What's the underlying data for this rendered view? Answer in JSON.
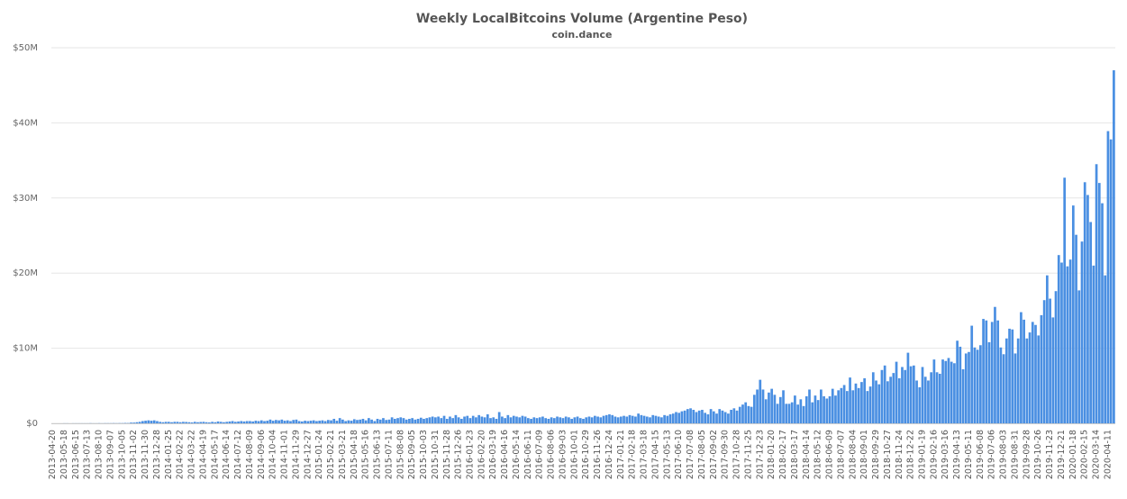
{
  "chart_data": {
    "type": "bar",
    "title": "Weekly LocalBitcoins Volume (Argentine Peso)",
    "subtitle": "coin.dance",
    "color": "#4a8fe2",
    "grid": true,
    "ylim": [
      0,
      50000000
    ],
    "yticks": [
      {
        "value": 0,
        "label": "$0"
      },
      {
        "value": 10000000,
        "label": "$10M"
      },
      {
        "value": 20000000,
        "label": "$20M"
      },
      {
        "value": 30000000,
        "label": "$30M"
      },
      {
        "value": 40000000,
        "label": "$40M"
      },
      {
        "value": 50000000,
        "label": "$50M"
      }
    ],
    "categories": [
      "2013-04-20",
      null,
      null,
      null,
      "2013-05-18",
      null,
      null,
      null,
      "2013-06-15",
      null,
      null,
      null,
      "2013-07-13",
      null,
      null,
      null,
      "2013-08-10",
      null,
      null,
      null,
      "2013-09-07",
      null,
      null,
      null,
      "2013-10-05",
      null,
      null,
      null,
      "2013-11-02",
      null,
      null,
      null,
      "2013-11-30",
      null,
      null,
      null,
      "2013-12-28",
      null,
      null,
      null,
      "2014-01-25",
      null,
      null,
      null,
      "2014-02-22",
      null,
      null,
      null,
      "2014-03-22",
      null,
      null,
      null,
      "2014-04-19",
      null,
      null,
      null,
      "2014-05-17",
      null,
      null,
      null,
      "2014-06-14",
      null,
      null,
      null,
      "2014-07-12",
      null,
      null,
      null,
      "2014-08-09",
      null,
      null,
      null,
      "2014-09-06",
      null,
      null,
      null,
      "2014-10-04",
      null,
      null,
      null,
      "2014-11-01",
      null,
      null,
      null,
      "2014-11-29",
      null,
      null,
      null,
      "2014-12-27",
      null,
      null,
      null,
      "2015-01-24",
      null,
      null,
      null,
      "2015-02-21",
      null,
      null,
      null,
      "2015-03-21",
      null,
      null,
      null,
      "2015-04-18",
      null,
      null,
      null,
      "2015-05-16",
      null,
      null,
      null,
      "2015-06-13",
      null,
      null,
      null,
      "2015-07-11",
      null,
      null,
      null,
      "2015-08-08",
      null,
      null,
      null,
      "2015-09-05",
      null,
      null,
      null,
      "2015-10-03",
      null,
      null,
      null,
      "2015-10-31",
      null,
      null,
      null,
      "2015-11-28",
      null,
      null,
      null,
      "2015-12-26",
      null,
      null,
      null,
      "2016-01-23",
      null,
      null,
      null,
      "2016-02-20",
      null,
      null,
      null,
      "2016-03-19",
      null,
      null,
      null,
      "2016-04-16",
      null,
      null,
      null,
      "2016-05-14",
      null,
      null,
      null,
      "2016-06-11",
      null,
      null,
      null,
      "2016-07-09",
      null,
      null,
      null,
      "2016-08-06",
      null,
      null,
      null,
      "2016-09-03",
      null,
      null,
      null,
      "2016-10-01",
      null,
      null,
      null,
      "2016-10-29",
      null,
      null,
      null,
      "2016-11-26",
      null,
      null,
      null,
      "2016-12-24",
      null,
      null,
      null,
      "2017-01-21",
      null,
      null,
      null,
      "2017-02-18",
      null,
      null,
      null,
      "2017-03-18",
      null,
      null,
      null,
      "2017-04-15",
      null,
      null,
      null,
      "2017-05-13",
      null,
      null,
      null,
      "2017-06-10",
      null,
      null,
      null,
      "2017-07-08",
      null,
      null,
      null,
      "2017-08-05",
      null,
      null,
      null,
      "2017-09-02",
      null,
      null,
      null,
      "2017-09-30",
      null,
      null,
      null,
      "2017-10-28",
      null,
      null,
      null,
      "2017-11-25",
      null,
      null,
      null,
      "2017-12-23",
      null,
      null,
      null,
      "2018-01-20",
      null,
      null,
      null,
      "2018-02-17",
      null,
      null,
      null,
      "2018-03-17",
      null,
      null,
      null,
      "2018-04-14",
      null,
      null,
      null,
      "2018-05-12",
      null,
      null,
      null,
      "2018-06-09",
      null,
      null,
      null,
      "2018-07-07",
      null,
      null,
      null,
      "2018-08-04",
      null,
      null,
      null,
      "2018-09-01",
      null,
      null,
      null,
      "2018-09-29",
      null,
      null,
      null,
      "2018-10-27",
      null,
      null,
      null,
      "2018-11-24",
      null,
      null,
      null,
      "2018-12-22",
      null,
      null,
      null,
      "2019-01-19",
      null,
      null,
      null,
      "2019-02-16",
      null,
      null,
      null,
      "2019-03-16",
      null,
      null,
      null,
      "2019-04-13",
      null,
      null,
      null,
      "2019-05-11",
      null,
      null,
      null,
      "2019-06-08",
      null,
      null,
      null,
      "2019-07-06",
      null,
      null,
      null,
      "2019-08-03",
      null,
      null,
      null,
      "2019-08-31",
      null,
      null,
      null,
      "2019-09-28",
      null,
      null,
      null,
      "2019-10-26",
      null,
      null,
      null,
      "2019-11-23",
      null,
      null,
      null,
      "2019-12-21",
      null,
      null,
      null,
      "2020-01-18",
      null,
      null,
      null,
      "2020-02-15",
      null,
      null,
      null,
      "2020-03-14",
      null,
      null,
      null,
      "2020-04-11",
      null,
      null
    ],
    "values": [
      0,
      0,
      0,
      0,
      10000,
      10000,
      0,
      10000,
      10000,
      10000,
      10000,
      10000,
      10000,
      20000,
      10000,
      10000,
      20000,
      10000,
      20000,
      20000,
      20000,
      30000,
      20000,
      30000,
      30000,
      50000,
      40000,
      100000,
      100000,
      150000,
      200000,
      300000,
      350000,
      400000,
      350000,
      400000,
      300000,
      200000,
      150000,
      200000,
      200000,
      150000,
      200000,
      200000,
      150000,
      200000,
      180000,
      150000,
      120000,
      200000,
      150000,
      180000,
      200000,
      150000,
      120000,
      200000,
      150000,
      250000,
      200000,
      150000,
      200000,
      250000,
      300000,
      200000,
      250000,
      300000,
      250000,
      300000,
      300000,
      250000,
      350000,
      300000,
      400000,
      300000,
      350000,
      500000,
      350000,
      450000,
      400000,
      500000,
      350000,
      400000,
      300000,
      450000,
      500000,
      300000,
      250000,
      350000,
      300000,
      350000,
      400000,
      300000,
      350000,
      400000,
      300000,
      450000,
      400000,
      600000,
      350000,
      700000,
      500000,
      300000,
      400000,
      350000,
      550000,
      450000,
      500000,
      600000,
      400000,
      700000,
      500000,
      300000,
      600000,
      500000,
      700000,
      450000,
      500000,
      800000,
      600000,
      700000,
      800000,
      700000,
      500000,
      600000,
      700000,
      500000,
      600000,
      750000,
      600000,
      700000,
      800000,
      900000,
      800000,
      900000,
      700000,
      1000000,
      600000,
      900000,
      700000,
      1100000,
      800000,
      600000,
      900000,
      1000000,
      700000,
      1000000,
      800000,
      1100000,
      900000,
      800000,
      1200000,
      700000,
      800000,
      600000,
      1500000,
      900000,
      700000,
      1100000,
      800000,
      1000000,
      900000,
      800000,
      1000000,
      900000,
      700000,
      600000,
      800000,
      700000,
      800000,
      900000,
      700000,
      600000,
      800000,
      700000,
      900000,
      800000,
      700000,
      900000,
      800000,
      600000,
      800000,
      900000,
      700000,
      600000,
      800000,
      900000,
      800000,
      1000000,
      900000,
      800000,
      1000000,
      1100000,
      1200000,
      1100000,
      900000,
      800000,
      900000,
      1000000,
      900000,
      1100000,
      1000000,
      900000,
      1300000,
      1100000,
      1000000,
      900000,
      800000,
      1100000,
      1000000,
      900000,
      800000,
      1100000,
      1000000,
      1200000,
      1300000,
      1500000,
      1400000,
      1600000,
      1700000,
      1900000,
      2000000,
      1800000,
      1500000,
      1700000,
      1800000,
      1400000,
      1200000,
      1900000,
      1600000,
      1300000,
      1900000,
      1700000,
      1500000,
      1300000,
      1800000,
      2000000,
      1700000,
      2200000,
      2500000,
      2800000,
      2300000,
      2200000,
      3800000,
      4500000,
      5800000,
      4500000,
      3200000,
      4100000,
      4600000,
      3800000,
      2600000,
      3500000,
      4400000,
      2600000,
      2600000,
      2800000,
      3700000,
      2500000,
      3200000,
      2300000,
      3600000,
      4500000,
      2800000,
      3700000,
      3100000,
      4500000,
      3600000,
      3300000,
      3600000,
      4600000,
      3700000,
      4400000,
      4700000,
      5100000,
      4300000,
      6100000,
      4400000,
      5300000,
      4700000,
      5500000,
      6000000,
      4300000,
      4900000,
      6800000,
      5700000,
      5200000,
      7100000,
      7700000,
      5600000,
      6200000,
      6700000,
      8200000,
      6000000,
      7500000,
      7100000,
      9400000,
      7600000,
      7700000,
      5700000,
      4800000,
      7500000,
      6200000,
      5700000,
      6800000,
      8500000,
      6800000,
      6600000,
      8500000,
      8300000,
      8700000,
      8200000,
      8000000,
      11000000,
      10200000,
      7200000,
      9300000,
      9500000,
      13000000,
      10100000,
      9800000,
      10400000,
      13900000,
      13700000,
      10800000,
      13500000,
      15500000,
      13700000,
      10100000,
      9200000,
      11300000,
      12600000,
      12500000,
      9300000,
      11300000,
      14800000,
      13800000,
      11300000,
      12100000,
      13500000,
      13100000,
      11700000,
      14400000,
      16400000,
      19700000,
      16600000,
      14100000,
      17600000,
      22400000,
      21400000,
      32700000,
      20900000,
      21800000,
      29000000,
      25100000,
      17700000,
      24200000,
      32100000,
      30400000,
      26800000,
      21000000,
      34500000,
      32000000,
      29300000,
      19700000,
      38900000,
      37800000,
      47000000
    ]
  }
}
